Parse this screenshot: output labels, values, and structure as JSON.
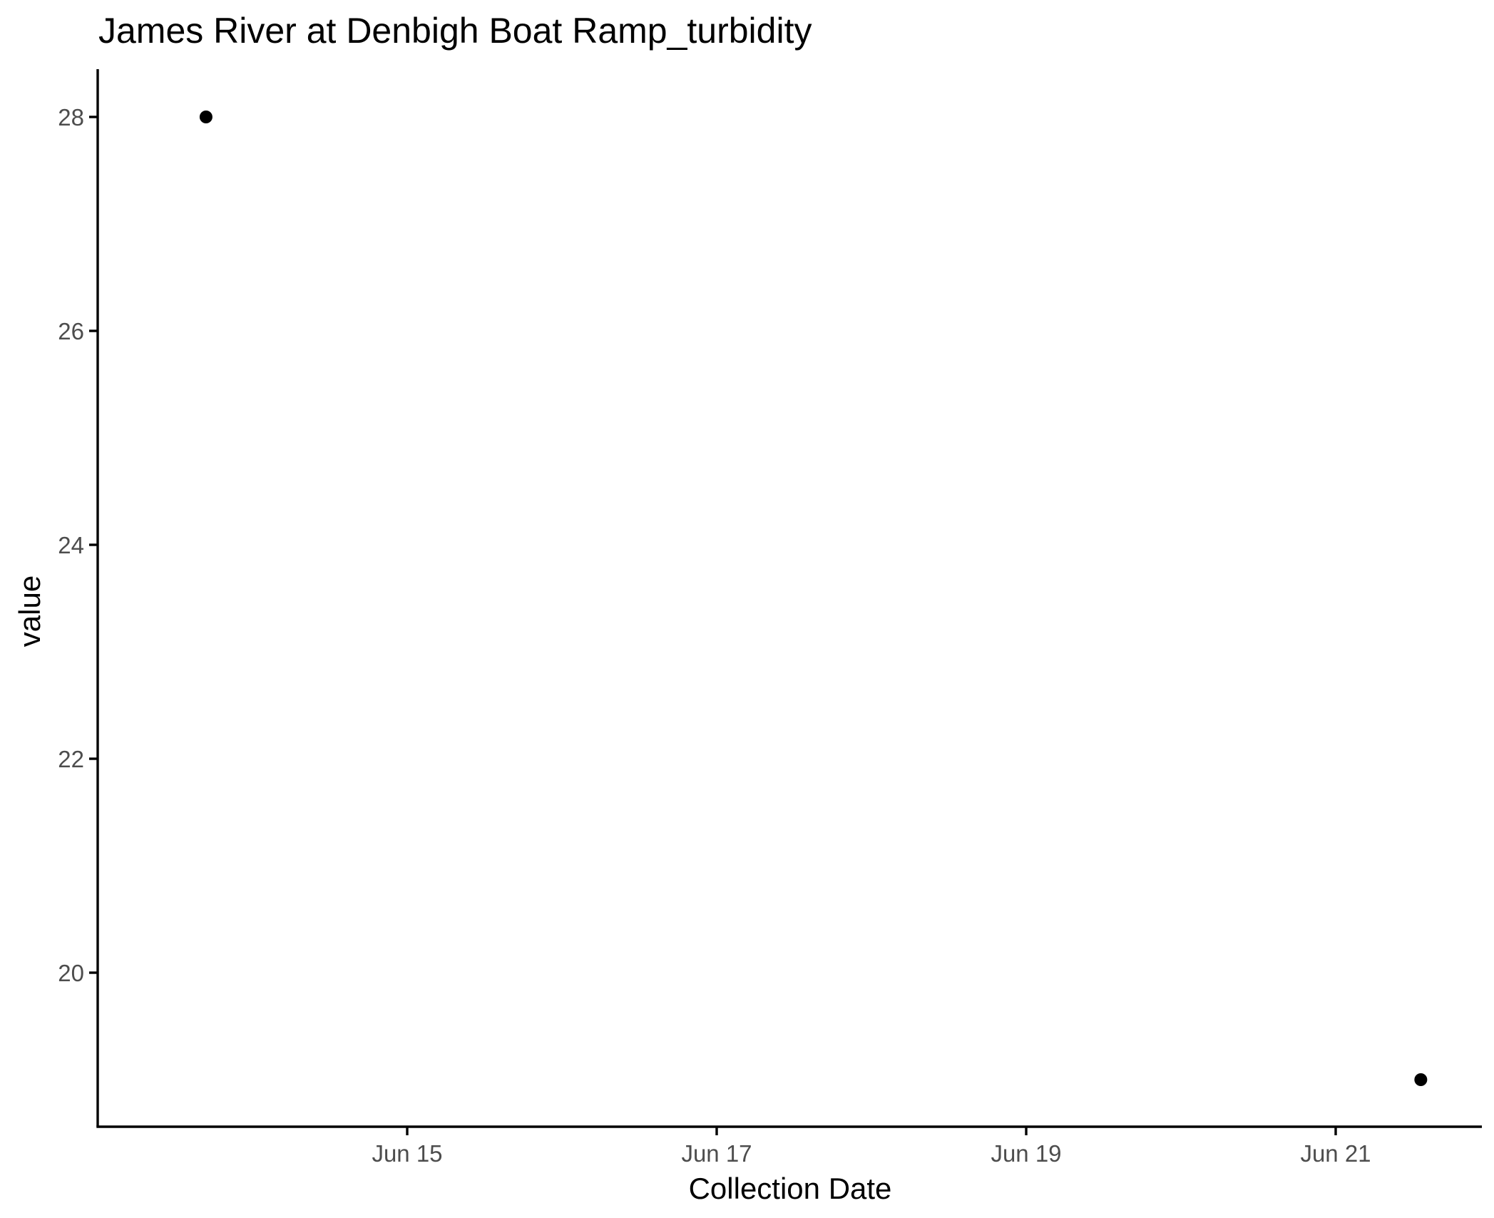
{
  "chart_data": {
    "type": "scatter",
    "title": "James River at Denbigh Boat Ramp_turbidity",
    "xlabel": "Collection Date",
    "ylabel": "value",
    "x_ticks": [
      "Jun 15",
      "Jun 17",
      "Jun 19",
      "Jun 21"
    ],
    "y_ticks": [
      "20",
      "22",
      "24",
      "26",
      "28"
    ],
    "grid": false,
    "legend": "none",
    "series": [
      {
        "points": [
          {
            "x": "Jun 13",
            "y": 28
          },
          {
            "x": "Jun 21",
            "y": 19
          }
        ]
      }
    ],
    "colors": {
      "point": "#000000",
      "axis": "#000000",
      "tick_text": "#4d4d4d"
    }
  }
}
